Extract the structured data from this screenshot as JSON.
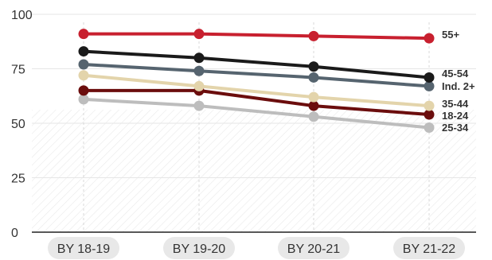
{
  "chart_data": {
    "type": "line",
    "title": "",
    "xlabel": "",
    "ylabel": "",
    "categories": [
      "BY 18-19",
      "BY 19-20",
      "BY 20-21",
      "BY 21-22"
    ],
    "ylim": [
      0,
      100
    ],
    "yticks": [
      "0",
      "25",
      "50",
      "75",
      "100"
    ],
    "grid": true,
    "series": [
      {
        "name": "55+",
        "color": "#c8202f",
        "values": [
          91,
          91,
          90,
          89
        ]
      },
      {
        "name": "45-54",
        "color": "#1a1a1a",
        "values": [
          83,
          80,
          76,
          71
        ]
      },
      {
        "name": "Ind. 2+",
        "color": "#56646f",
        "values": [
          77,
          74,
          71,
          67
        ]
      },
      {
        "name": "35-44",
        "color": "#e3d4ab",
        "values": [
          72,
          67,
          62,
          58
        ]
      },
      {
        "name": "18-24",
        "color": "#6b0d0d",
        "values": [
          65,
          65,
          58,
          54
        ]
      },
      {
        "name": "25-34",
        "color": "#bdbdbd",
        "values": [
          61,
          58,
          53,
          48
        ]
      }
    ]
  }
}
